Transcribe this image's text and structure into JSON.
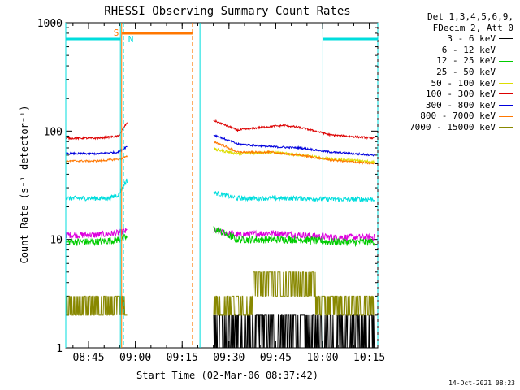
{
  "chart_data": {
    "type": "line",
    "title": "RHESSI Observing Summary Count Rates",
    "xlabel": "Start Time (02-Mar-06 08:37:42)",
    "ylabel": "Count Rate (s⁻¹ detector⁻¹)",
    "y_scale": "log",
    "ylim": [
      1,
      1000
    ],
    "xlim_min": [
      0,
      100
    ],
    "y_ticks": [
      "1",
      "10",
      "100",
      "1000"
    ],
    "x_ticks": [
      {
        "t": 7.3,
        "label": "08:45"
      },
      {
        "t": 22.3,
        "label": "09:00"
      },
      {
        "t": 37.3,
        "label": "09:15"
      },
      {
        "t": 52.3,
        "label": "09:30"
      },
      {
        "t": 67.3,
        "label": "09:45"
      },
      {
        "t": 82.3,
        "label": "10:00"
      },
      {
        "t": 97.3,
        "label": "10:15"
      }
    ],
    "series": [
      {
        "name": "3 - 6 keV",
        "color": "#000000",
        "points": [
          [
            0,
            1
          ],
          [
            19.5,
            1
          ],
          [
            47.5,
            1.5
          ],
          [
            60,
            1.8
          ],
          [
            65,
            2.2
          ],
          [
            75,
            1.8
          ],
          [
            85,
            1.5
          ],
          [
            99,
            1.4
          ]
        ]
      },
      {
        "name": "6 - 12 keV",
        "color": "#dd00dd",
        "points": [
          [
            0,
            11
          ],
          [
            10,
            11
          ],
          [
            17,
            11.5
          ],
          [
            19.5,
            12
          ],
          [
            47.5,
            12
          ],
          [
            55,
            11
          ],
          [
            65,
            11.5
          ],
          [
            75,
            11
          ],
          [
            85,
            10.5
          ],
          [
            99,
            10.5
          ]
        ]
      },
      {
        "name": "12 - 25 keV",
        "color": "#00cc00",
        "points": [
          [
            0,
            9.5
          ],
          [
            10,
            9.5
          ],
          [
            17,
            10
          ],
          [
            19.5,
            10.5
          ],
          [
            47.5,
            12.5
          ],
          [
            55,
            10
          ],
          [
            65,
            10
          ],
          [
            75,
            10
          ],
          [
            85,
            9.5
          ],
          [
            99,
            9.5
          ]
        ]
      },
      {
        "name": "25 - 50 keV",
        "color": "#00dddd",
        "points": [
          [
            0,
            24
          ],
          [
            14,
            24
          ],
          [
            17,
            26
          ],
          [
            19.5,
            35
          ],
          [
            47.5,
            27
          ],
          [
            55,
            24
          ],
          [
            65,
            24
          ],
          [
            75,
            24
          ],
          [
            85,
            23.5
          ],
          [
            99,
            23.5
          ]
        ]
      },
      {
        "name": "50 - 100 keV",
        "color": "#dddd00",
        "points": [
          [
            47.5,
            68
          ],
          [
            55,
            62
          ],
          [
            65,
            64
          ],
          [
            75,
            60
          ],
          [
            85,
            55
          ],
          [
            99,
            52
          ]
        ]
      },
      {
        "name": "100 - 300 keV",
        "color": "#dd0000",
        "points": [
          [
            0,
            86
          ],
          [
            10,
            86
          ],
          [
            17,
            90
          ],
          [
            19.5,
            118
          ],
          [
            47.5,
            125
          ],
          [
            55,
            102
          ],
          [
            65,
            110
          ],
          [
            70,
            113
          ],
          [
            75,
            108
          ],
          [
            85,
            92
          ],
          [
            99,
            86
          ]
        ]
      },
      {
        "name": "300 - 800 keV",
        "color": "#0000dd",
        "points": [
          [
            0,
            62
          ],
          [
            10,
            62
          ],
          [
            17,
            64
          ],
          [
            19.5,
            72
          ],
          [
            47.5,
            92
          ],
          [
            55,
            76
          ],
          [
            65,
            72
          ],
          [
            75,
            70
          ],
          [
            85,
            64
          ],
          [
            99,
            60
          ]
        ]
      },
      {
        "name": "800 - 7000 keV",
        "color": "#ff7700",
        "points": [
          [
            0,
            53
          ],
          [
            10,
            53
          ],
          [
            17,
            55
          ],
          [
            19.5,
            58
          ],
          [
            47.5,
            80
          ],
          [
            55,
            64
          ],
          [
            65,
            64
          ],
          [
            75,
            60
          ],
          [
            85,
            54
          ],
          [
            99,
            50
          ]
        ]
      },
      {
        "name": "7000 - 15000 keV",
        "color": "#888800",
        "points": [
          [
            0,
            2.4
          ],
          [
            19.5,
            2.4
          ],
          [
            47.5,
            2.6
          ],
          [
            60,
            3
          ],
          [
            65,
            4
          ],
          [
            75,
            3.5
          ],
          [
            85,
            2.4
          ],
          [
            99,
            2.2
          ]
        ]
      }
    ],
    "annotations": [
      {
        "label": "S",
        "color": "#ff7700"
      },
      {
        "label": "N",
        "color": "#00dddd"
      }
    ]
  },
  "legend": {
    "header1": "Det 1,3,4,5,6,9,",
    "header2": "FDecim 2, Att 0",
    "items": [
      {
        "label": "3 - 6 keV",
        "color": "#000000"
      },
      {
        "label": "6 - 12 keV",
        "color": "#dd00dd"
      },
      {
        "label": "12 - 25 keV",
        "color": "#00cc00"
      },
      {
        "label": "25 - 50 keV",
        "color": "#00dddd"
      },
      {
        "label": "50 - 100 keV",
        "color": "#dddd00"
      },
      {
        "label": "100 - 300 keV",
        "color": "#dd0000"
      },
      {
        "label": "300 - 800 keV",
        "color": "#0000dd"
      },
      {
        "label": "800 - 7000 keV",
        "color": "#ff7700"
      },
      {
        "label": "7000 - 15000 keV",
        "color": "#888800"
      }
    ]
  },
  "footer": {
    "date": "14-Oct-2021 08:23"
  }
}
